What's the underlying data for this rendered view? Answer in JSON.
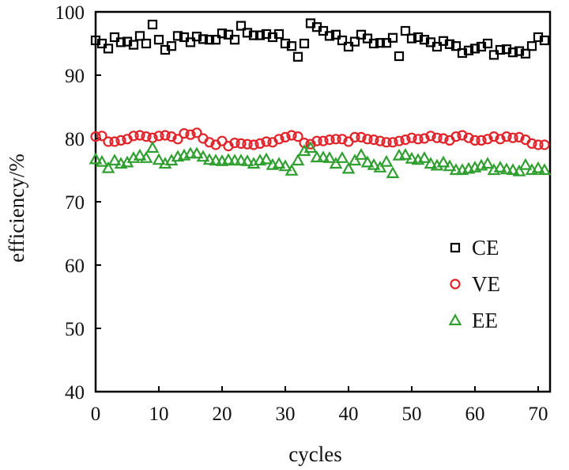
{
  "chart_data": {
    "type": "scatter",
    "title": "",
    "xlabel": "cycles",
    "ylabel": "efficiency/%",
    "xlim": [
      0,
      75
    ],
    "ylim": [
      40,
      100
    ],
    "xticks": [
      "0",
      "10",
      "20",
      "30",
      "40",
      "50",
      "60",
      "70"
    ],
    "yticks": [
      "40",
      "50",
      "60",
      "70",
      "80",
      "90",
      "100"
    ],
    "grid": false,
    "legend_position": "right-middle",
    "series": [
      {
        "name": "CE",
        "marker": "square",
        "color": "#000000",
        "x": [
          0,
          1,
          2,
          3,
          4,
          5,
          6,
          7,
          8,
          9,
          10,
          11,
          12,
          13,
          14,
          15,
          16,
          17,
          18,
          19,
          20,
          21,
          22,
          23,
          24,
          25,
          26,
          27,
          28,
          29,
          30,
          31,
          32,
          33,
          34,
          35,
          36,
          37,
          38,
          39,
          40,
          41,
          42,
          43,
          44,
          45,
          46,
          47,
          48,
          49,
          50,
          51,
          52,
          53,
          54,
          55,
          56,
          57,
          58,
          59,
          60,
          61,
          62,
          63,
          64,
          65,
          66,
          67,
          68,
          69,
          70,
          71
        ],
        "y": [
          95.5,
          95.0,
          94.2,
          96.0,
          95.2,
          95.3,
          94.8,
          96.2,
          95.0,
          98.0,
          95.6,
          94.0,
          94.6,
          96.2,
          96.0,
          95.2,
          96.1,
          95.7,
          95.6,
          95.6,
          96.6,
          96.4,
          95.6,
          97.8,
          96.7,
          96.3,
          96.3,
          96.5,
          96.0,
          96.5,
          95.0,
          94.6,
          92.9,
          95.0,
          98.2,
          97.6,
          97.0,
          96.2,
          96.4,
          95.5,
          94.5,
          95.3,
          96.4,
          95.8,
          95.0,
          95.1,
          95.1,
          95.9,
          93.0,
          97.0,
          95.8,
          96.0,
          95.6,
          95.2,
          94.5,
          95.4,
          94.9,
          94.6,
          93.5,
          93.9,
          94.2,
          94.5,
          95.0,
          93.2,
          94.0,
          94.1,
          93.6,
          93.8,
          93.4,
          94.6,
          96.0,
          95.5
        ]
      },
      {
        "name": "VE",
        "marker": "circle",
        "color": "#e0242a",
        "x": [
          0,
          1,
          2,
          3,
          4,
          5,
          6,
          7,
          8,
          9,
          10,
          11,
          12,
          13,
          14,
          15,
          16,
          17,
          18,
          19,
          20,
          21,
          22,
          23,
          24,
          25,
          26,
          27,
          28,
          29,
          30,
          31,
          32,
          33,
          34,
          35,
          36,
          37,
          38,
          39,
          40,
          41,
          42,
          43,
          44,
          45,
          46,
          47,
          48,
          49,
          50,
          51,
          52,
          53,
          54,
          55,
          56,
          57,
          58,
          59,
          60,
          61,
          62,
          63,
          64,
          65,
          66,
          67,
          68,
          69,
          70,
          71
        ],
        "y": [
          80.3,
          80.4,
          79.5,
          79.5,
          79.7,
          79.9,
          80.4,
          80.5,
          80.3,
          80.1,
          80.4,
          80.5,
          80.3,
          79.9,
          80.8,
          80.6,
          80.9,
          80.0,
          79.4,
          79.0,
          79.6,
          78.8,
          79.3,
          79.2,
          79.1,
          79.0,
          79.2,
          79.5,
          79.4,
          79.9,
          80.2,
          80.5,
          80.3,
          79.3,
          79.1,
          79.6,
          79.6,
          79.8,
          79.9,
          79.9,
          79.5,
          80.2,
          80.2,
          79.9,
          79.8,
          79.6,
          79.4,
          79.4,
          79.6,
          79.8,
          80.1,
          79.9,
          80.0,
          80.4,
          80.1,
          80.0,
          79.7,
          80.3,
          80.5,
          80.1,
          79.7,
          79.7,
          79.9,
          80.3,
          79.9,
          80.3,
          80.1,
          80.2,
          79.8,
          79.2,
          79.0,
          79.0
        ]
      },
      {
        "name": "EE",
        "marker": "triangle",
        "color": "#2fa02f",
        "x": [
          0,
          1,
          2,
          3,
          4,
          5,
          6,
          7,
          8,
          9,
          10,
          11,
          12,
          13,
          14,
          15,
          16,
          17,
          18,
          19,
          20,
          21,
          22,
          23,
          24,
          25,
          26,
          27,
          28,
          29,
          30,
          31,
          32,
          33,
          34,
          35,
          36,
          37,
          38,
          39,
          40,
          41,
          42,
          43,
          44,
          45,
          46,
          47,
          48,
          49,
          50,
          51,
          52,
          53,
          54,
          55,
          56,
          57,
          58,
          59,
          60,
          61,
          62,
          63,
          64,
          65,
          66,
          67,
          68,
          69,
          70,
          71
        ],
        "y": [
          76.7,
          76.3,
          75.3,
          76.5,
          76.0,
          76.2,
          76.9,
          77.3,
          76.9,
          78.5,
          76.6,
          76.0,
          76.5,
          77.1,
          77.3,
          77.6,
          77.6,
          77.1,
          76.6,
          76.5,
          76.4,
          76.6,
          76.5,
          76.5,
          76.4,
          76.0,
          76.5,
          76.7,
          75.8,
          76.0,
          75.6,
          74.9,
          76.5,
          78.0,
          78.5,
          77.0,
          77.0,
          76.9,
          76.0,
          76.9,
          75.2,
          76.5,
          77.4,
          76.2,
          75.8,
          75.4,
          76.3,
          74.5,
          77.3,
          77.4,
          76.8,
          76.6,
          76.9,
          76.0,
          75.7,
          76.2,
          75.6,
          75.0,
          75.0,
          75.2,
          75.4,
          75.7,
          76.0,
          75.0,
          75.4,
          75.1,
          75.0,
          74.8,
          75.8,
          75.0,
          75.3,
          75.0
        ]
      }
    ]
  }
}
